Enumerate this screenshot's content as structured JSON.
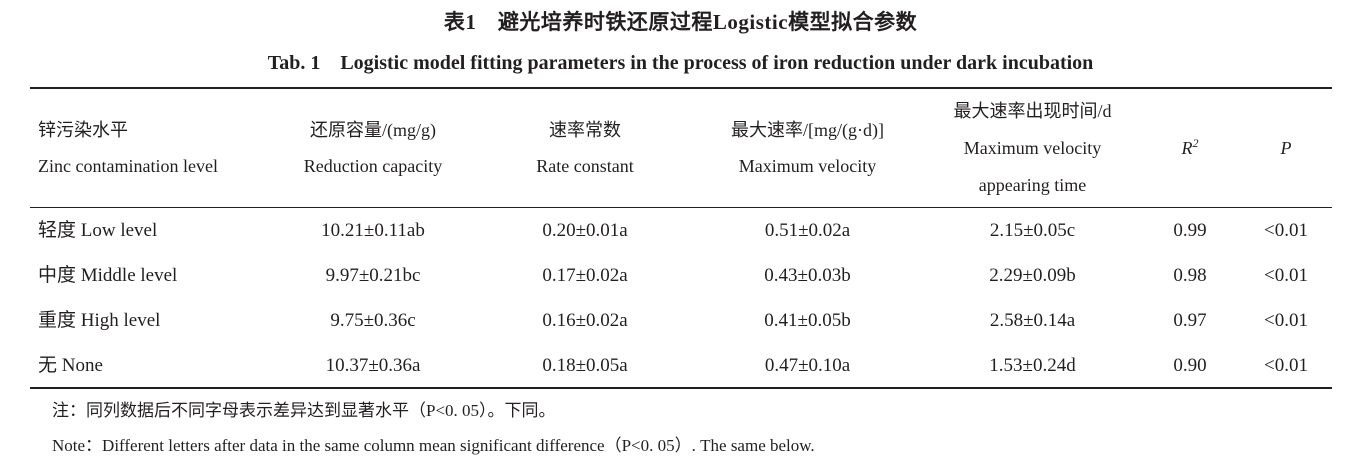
{
  "caption": {
    "cn": "表1　避光培养时铁还原过程Logistic模型拟合参数",
    "en": "Tab. 1　Logistic model fitting parameters in the process of iron reduction under dark incubation"
  },
  "table": {
    "headers": [
      {
        "cn": "锌污染水平",
        "en": "Zinc contamination level"
      },
      {
        "cn": "还原容量/(mg/g)",
        "en": "Reduction capacity"
      },
      {
        "cn": "速率常数",
        "en": "Rate constant"
      },
      {
        "cn": "最大速率/[mg/(g·d)]",
        "en": "Maximum velocity"
      },
      {
        "cn": "最大速率出现时间/d",
        "en_line1": "Maximum velocity",
        "en_line2": "appearing time"
      },
      {
        "sym": "R",
        "sup": "2"
      },
      {
        "sym": "P"
      }
    ],
    "rows": [
      {
        "level": "轻度 Low level",
        "capacity": "10.21±0.11ab",
        "rate": "0.20±0.01a",
        "vmax": "0.51±0.02a",
        "time": "2.15±0.05c",
        "r2": "0.99",
        "p": "<0.01"
      },
      {
        "level": "中度 Middle level",
        "capacity": "9.97±0.21bc",
        "rate": "0.17±0.02a",
        "vmax": "0.43±0.03b",
        "time": "2.29±0.09b",
        "r2": "0.98",
        "p": "<0.01"
      },
      {
        "level": "重度 High level",
        "capacity": "9.75±0.36c",
        "rate": "0.16±0.02a",
        "vmax": "0.41±0.05b",
        "time": "2.58±0.14a",
        "r2": "0.97",
        "p": "<0.01"
      },
      {
        "level": "无 None",
        "capacity": "10.37±0.36a",
        "rate": "0.18±0.05a",
        "vmax": "0.47±0.10a",
        "time": "1.53±0.24d",
        "r2": "0.90",
        "p": "<0.01"
      }
    ]
  },
  "notes": {
    "cn": "注：同列数据后不同字母表示差异达到显著水平（P<0. 05）。下同。",
    "en": "Note：Different letters after data in the same column mean significant difference（P<0. 05）. The same below."
  }
}
